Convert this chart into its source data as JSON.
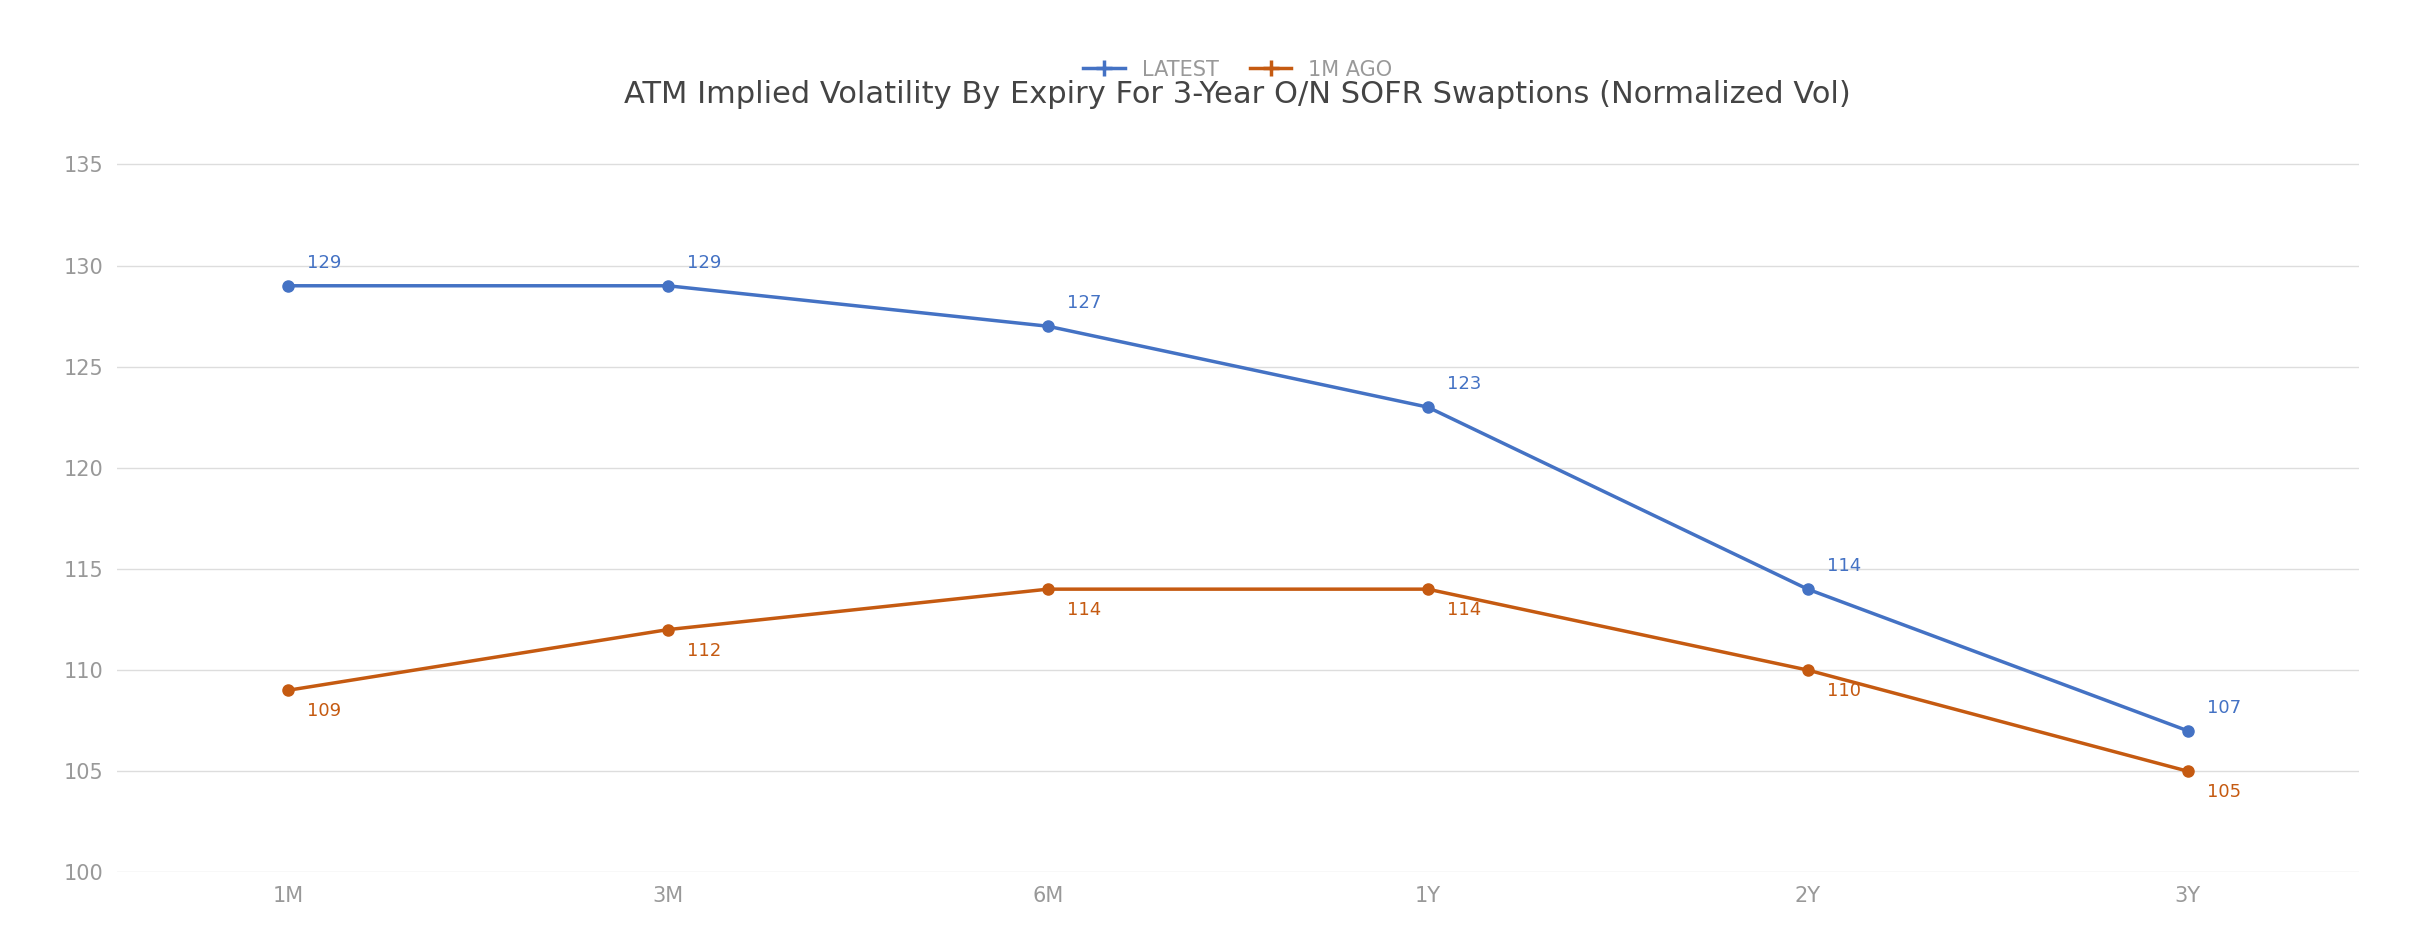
{
  "title": "ATM Implied Volatility By Expiry For 3-Year O/N SOFR Swaptions (Normalized Vol)",
  "categories": [
    "1M",
    "3M",
    "6M",
    "1Y",
    "2Y",
    "3Y"
  ],
  "latest_values": [
    129,
    129,
    127,
    123,
    114,
    107
  ],
  "ago_values": [
    109,
    112,
    114,
    114,
    110,
    105
  ],
  "latest_color": "#4472C4",
  "ago_color": "#C55A11",
  "latest_label": "LATEST",
  "ago_label": "1M AGO",
  "ylim": [
    100,
    137
  ],
  "yticks": [
    100,
    105,
    110,
    115,
    120,
    125,
    130,
    135
  ],
  "background_color": "#FFFFFF",
  "grid_color": "#DDDDDD",
  "title_fontsize": 22,
  "annotation_fontsize": 13,
  "legend_fontsize": 15,
  "tick_fontsize": 15,
  "tick_color": "#999999",
  "text_color": "#444444"
}
